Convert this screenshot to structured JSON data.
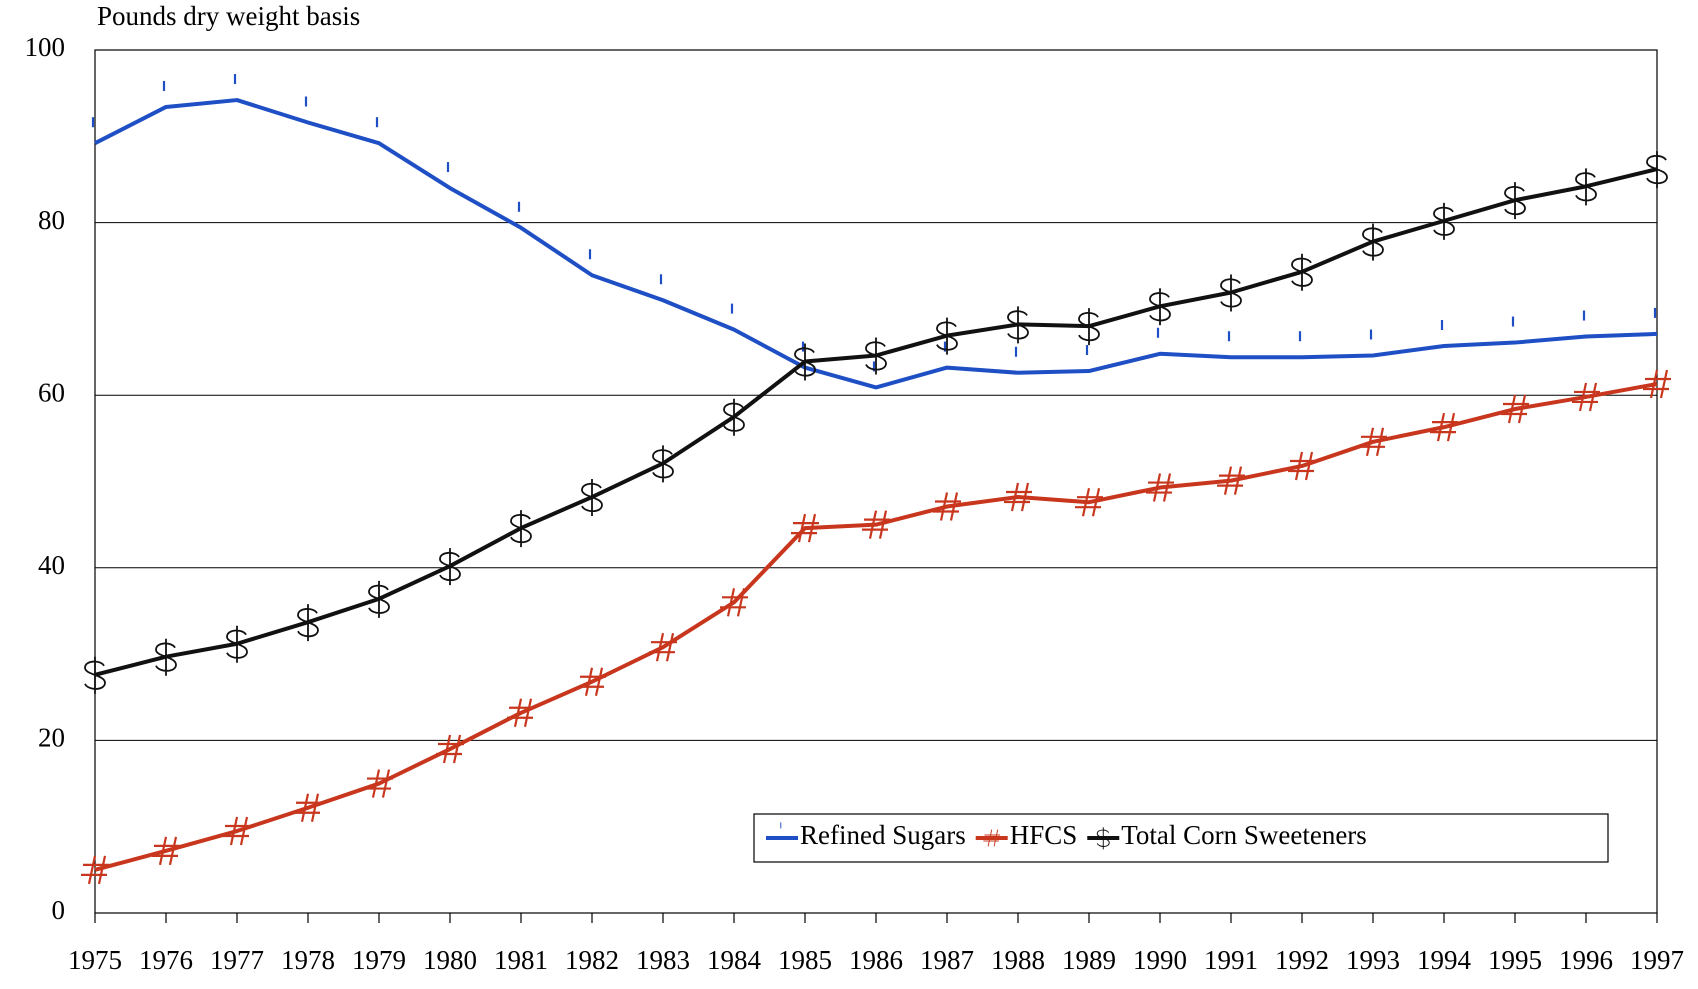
{
  "chart_data": {
    "type": "line",
    "y_label": "Pounds dry weight basis",
    "categories": [
      "1975",
      "1976",
      "1977",
      "1978",
      "1979",
      "1980",
      "1981",
      "1982",
      "1983",
      "1984",
      "1985",
      "1986",
      "1987",
      "1988",
      "1989",
      "1990",
      "1991",
      "1992",
      "1993",
      "1994",
      "1995",
      "1996",
      "1997"
    ],
    "series": [
      {
        "name": "Refined Sugars",
        "color": "#1f4fc4",
        "marker": "tick",
        "values": [
          89.2,
          93.4,
          94.2,
          91.6,
          89.2,
          84.0,
          79.4,
          73.9,
          71.0,
          67.6,
          63.2,
          60.9,
          63.2,
          62.6,
          62.8,
          64.8,
          64.4,
          64.4,
          64.6,
          65.7,
          66.1,
          66.8,
          67.1
        ]
      },
      {
        "name": "HFCS",
        "color": "#c8361e",
        "marker": "hash",
        "values": [
          5.0,
          7.2,
          9.5,
          12.2,
          15.0,
          19.0,
          23.2,
          26.8,
          30.8,
          36.0,
          44.6,
          45.0,
          47.1,
          48.2,
          47.6,
          49.3,
          50.1,
          51.8,
          54.6,
          56.3,
          58.4,
          59.8,
          61.3
        ]
      },
      {
        "name": "Total Corn Sweeteners",
        "color": "#111111",
        "marker": "dollar",
        "values": [
          27.6,
          29.7,
          31.2,
          33.7,
          36.4,
          40.2,
          44.6,
          48.2,
          52.1,
          57.5,
          63.9,
          64.6,
          66.9,
          68.2,
          68.0,
          70.3,
          71.9,
          74.3,
          77.8,
          80.2,
          82.6,
          84.2,
          86.2
        ]
      }
    ],
    "ylim": [
      0,
      100
    ],
    "yticks": [
      0,
      20,
      40,
      60,
      80,
      100
    ],
    "grid": true,
    "legend": "lower right"
  }
}
